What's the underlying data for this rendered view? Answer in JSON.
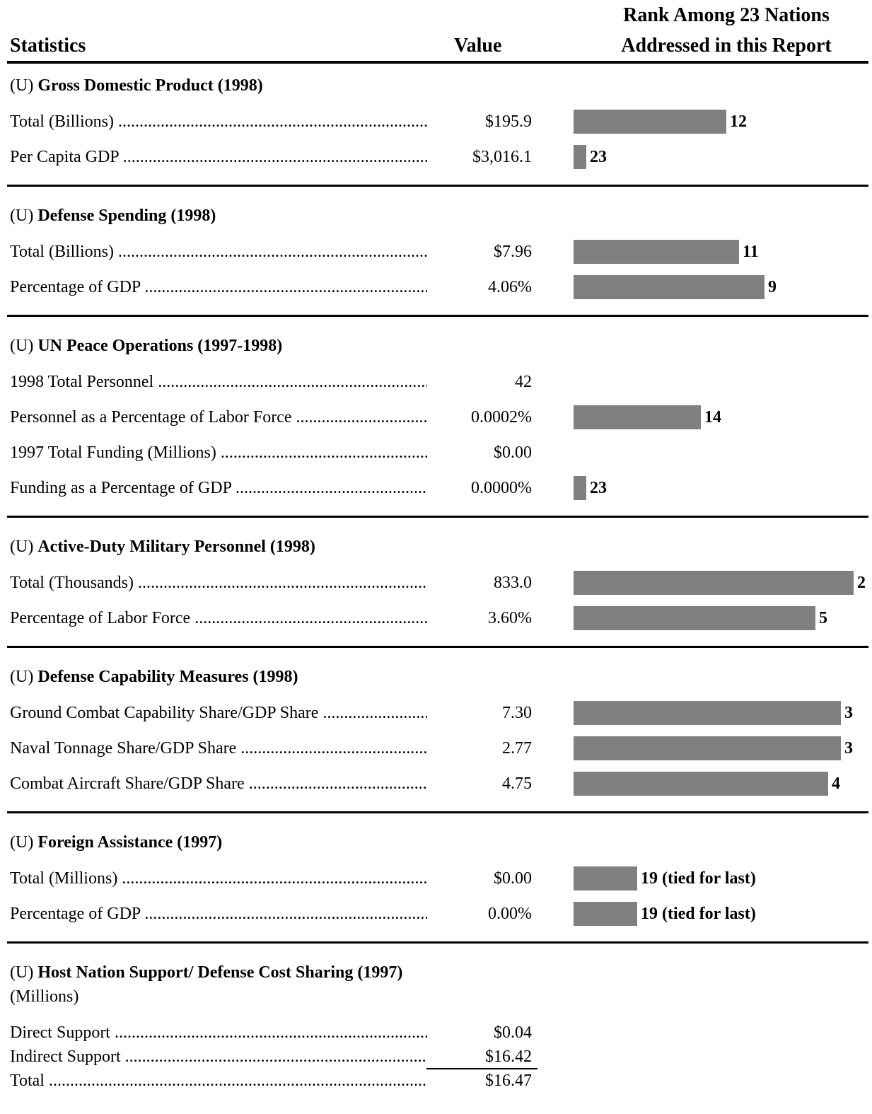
{
  "header": {
    "statistics": "Statistics",
    "value": "Value",
    "rank_line1": "Rank Among 23 Nations",
    "rank_line2": "Addressed in this Report"
  },
  "sections": [
    {
      "marking": "(U)",
      "title": "Gross Domestic Product (1998)",
      "rows": [
        {
          "label": "Total (Billions)",
          "value": "$195.9",
          "rank": 12
        },
        {
          "label": "Per Capita GDP",
          "value": "$3,016.1",
          "rank": 23
        }
      ]
    },
    {
      "marking": "(U)",
      "title": "Defense Spending (1998)",
      "rows": [
        {
          "label": "Total (Billions)",
          "value": "$7.96",
          "rank": 11
        },
        {
          "label": "Percentage of GDP",
          "value": "4.06%",
          "rank": 9
        }
      ]
    },
    {
      "marking": "(U)",
      "title": "UN Peace Operations (1997-1998)",
      "rows": [
        {
          "label": "1998 Total Personnel",
          "value": "42"
        },
        {
          "label": "Personnel as a Percentage of Labor Force",
          "value": "0.0002%",
          "rank": 14
        },
        {
          "label": "1997 Total Funding (Millions)",
          "value": "$0.00"
        },
        {
          "label": "Funding as a Percentage of GDP",
          "value": "0.0000%",
          "rank": 23
        }
      ]
    },
    {
      "marking": "(U)",
      "title": "Active-Duty Military Personnel (1998)",
      "rows": [
        {
          "label": "Total (Thousands)",
          "value": "833.0",
          "rank": 2
        },
        {
          "label": "Percentage of Labor Force",
          "value": "3.60%",
          "rank": 5
        }
      ]
    },
    {
      "marking": "(U)",
      "title": "Defense Capability Measures (1998)",
      "rows": [
        {
          "label": "Ground Combat Capability Share/GDP Share",
          "value": "7.30",
          "rank": 3
        },
        {
          "label": "Naval Tonnage Share/GDP Share",
          "value": "2.77",
          "rank": 3
        },
        {
          "label": "Combat Aircraft Share/GDP Share",
          "value": "4.75",
          "rank": 4
        }
      ]
    },
    {
      "marking": "(U)",
      "title": "Foreign Assistance (1997)",
      "rows": [
        {
          "label": "Total (Millions)",
          "value": "$0.00",
          "rank": 19,
          "rank_label": "19 (tied for last)"
        },
        {
          "label": "Percentage of GDP",
          "value": "0.00%",
          "rank": 19,
          "rank_label": "19 (tied for last)"
        }
      ]
    }
  ],
  "host_support": {
    "marking": "(U)",
    "title": "Host Nation Support/ Defense Cost Sharing (1997)",
    "subtitle": "(Millions)",
    "rows": [
      {
        "label": "Direct Support",
        "value": "$0.04"
      },
      {
        "label": "Indirect Support",
        "value": "$16.42"
      }
    ],
    "total": {
      "label": "Total",
      "value": "$16.47"
    }
  }
}
